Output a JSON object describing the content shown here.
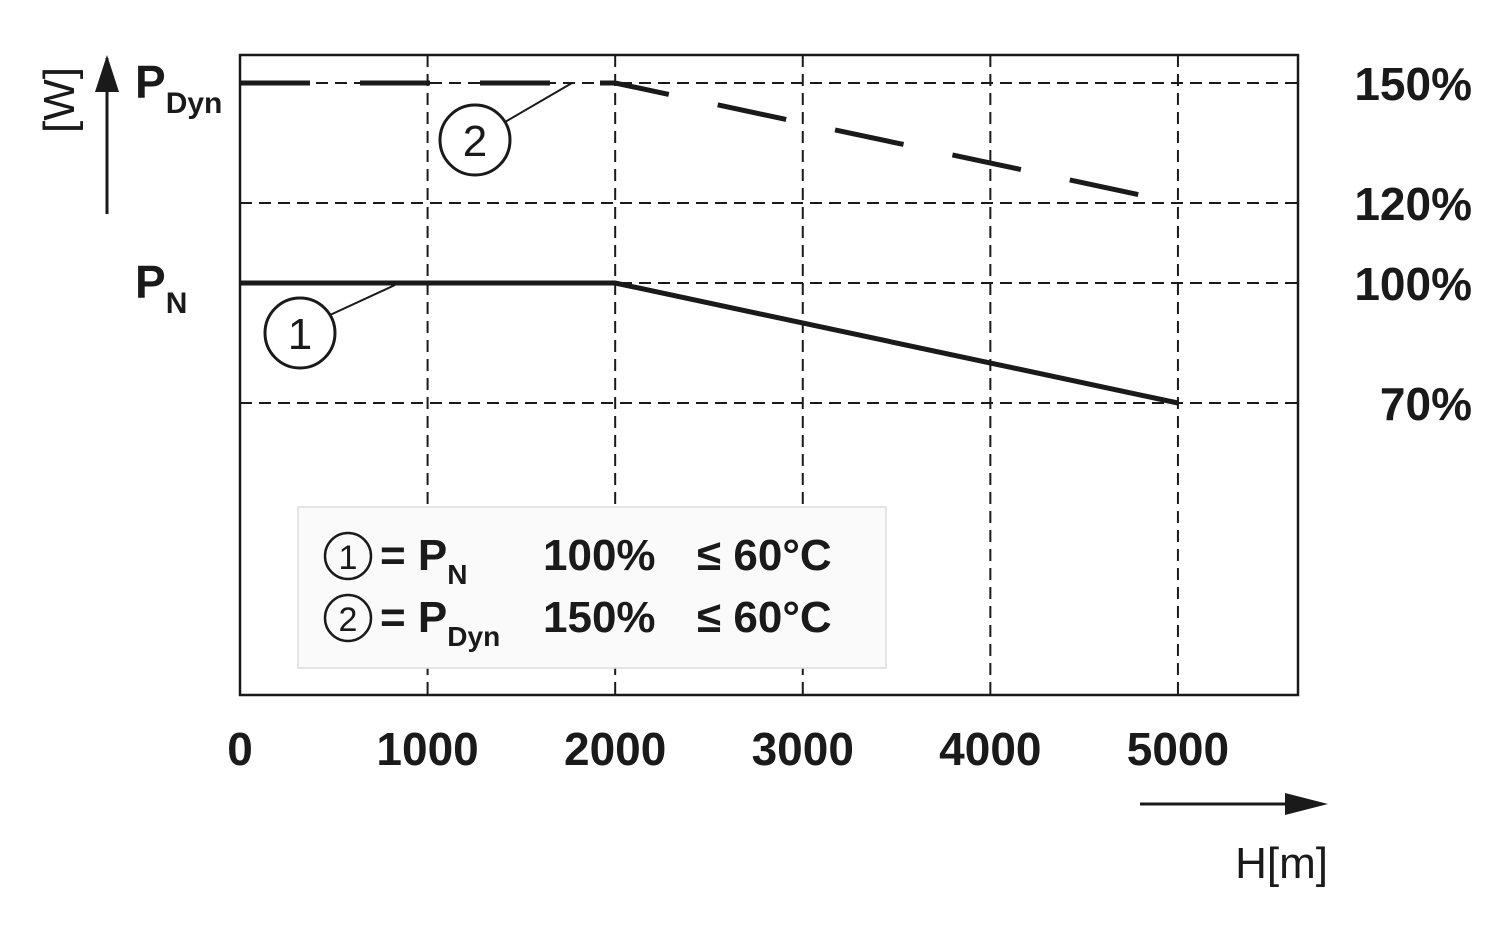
{
  "chart_data": {
    "type": "line",
    "x_label": "H[m]",
    "y_label": "[W]",
    "x": [
      0,
      2000,
      5000
    ],
    "series": [
      {
        "name": "1",
        "color": "#1a1a1a",
        "dash": "solid",
        "values": [
          100,
          100,
          70
        ]
      },
      {
        "name": "2",
        "color": "#1a1a1a",
        "dash": "dashed",
        "values": [
          150,
          150,
          120
        ]
      }
    ],
    "xlim": [
      0,
      5640
    ],
    "ylim": [
      -3,
      157
    ],
    "xticks": [
      0,
      1000,
      2000,
      3000,
      4000,
      5000
    ],
    "yticks": [
      {
        "value": 150,
        "label": "150%"
      },
      {
        "value": 120,
        "label": "120%"
      },
      {
        "value": 100,
        "label": "100%"
      },
      {
        "value": 70,
        "label": "70%"
      }
    ],
    "y_left_labels": [
      {
        "value": 150,
        "main": "P",
        "sub": "Dyn"
      },
      {
        "value": 100,
        "main": "P",
        "sub": "N"
      }
    ],
    "grid": true,
    "legend": [
      {
        "marker": "1",
        "text": "= P",
        "sub": "N",
        "level": "100%",
        "condition": "≤ 60°C"
      },
      {
        "marker": "2",
        "text": "= P",
        "sub": "Dyn",
        "level": "150%",
        "condition": "≤ 60°C"
      }
    ]
  }
}
